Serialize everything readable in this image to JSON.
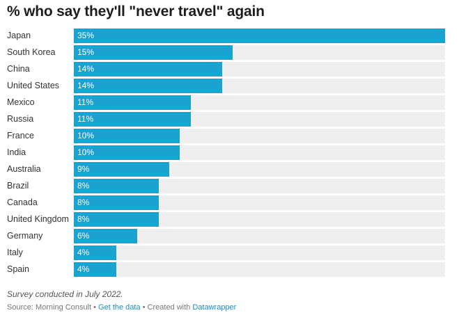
{
  "header": {
    "title": "% who say they'll \"never travel\" again"
  },
  "colors": {
    "bar": "#1aa3d0",
    "track": "#efefef",
    "bar_label": "#ffffff"
  },
  "chart_data": {
    "type": "bar",
    "orientation": "horizontal",
    "title": "% who say they'll \"never travel\" again",
    "categories": [
      "Japan",
      "South Korea",
      "China",
      "United States",
      "Mexico",
      "Russia",
      "France",
      "India",
      "Australia",
      "Brazil",
      "Canada",
      "United Kingdom",
      "Germany",
      "Italy",
      "Spain"
    ],
    "values": [
      35,
      15,
      14,
      14,
      11,
      11,
      10,
      10,
      9,
      8,
      8,
      8,
      6,
      4,
      4
    ],
    "value_labels": [
      "35%",
      "15%",
      "14%",
      "14%",
      "11%",
      "11%",
      "10%",
      "10%",
      "9%",
      "8%",
      "8%",
      "8%",
      "6%",
      "4%",
      "4%"
    ],
    "xlim": [
      0,
      35
    ],
    "grid": false,
    "legend": "none"
  },
  "footer": {
    "note": "Survey conducted in July 2022.",
    "source": "Source: Morning Consult",
    "sep1": " • ",
    "get_data": "Get the data",
    "sep2": " • Created with ",
    "credit": "Datawrapper"
  }
}
